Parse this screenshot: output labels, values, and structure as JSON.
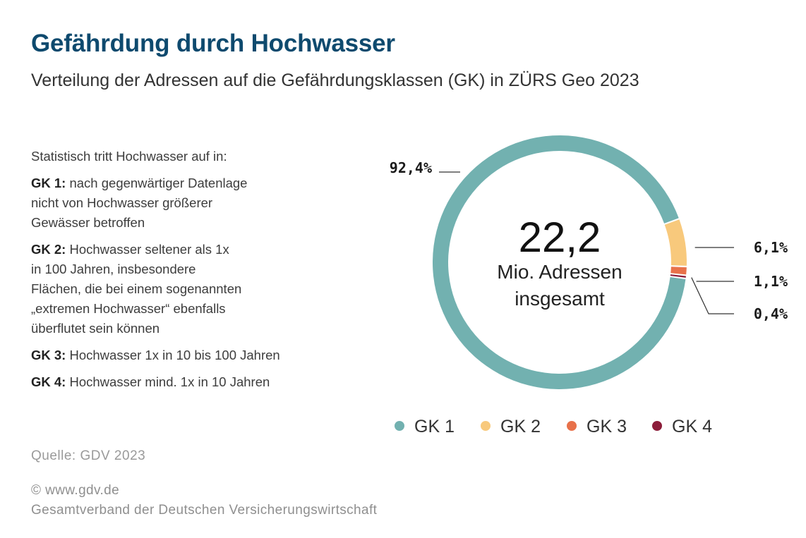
{
  "header": {
    "title": "Gefährdung durch Hochwasser",
    "subtitle": "Verteilung der Adressen auf die Gefährdungsklassen (GK) in ZÜRS Geo 2023"
  },
  "explanation": {
    "intro": "Statistisch tritt Hochwasser auf in:",
    "items": [
      {
        "key": "GK 1:",
        "lines": [
          "nach gegenwärtiger Datenlage",
          "nicht von Hochwasser größerer",
          "Gewässer betroffen"
        ]
      },
      {
        "key": "GK 2:",
        "lines": [
          "Hochwasser seltener als 1x",
          "in 100 Jahren, insbesondere",
          "Flächen, die bei einem sogenannten",
          "„extremen Hochwasser“ ebenfalls",
          "überflutet sein können"
        ]
      },
      {
        "key": "GK 3:",
        "lines": [
          "Hochwasser 1x in 10 bis 100 Jahren"
        ]
      },
      {
        "key": "GK 4:",
        "lines": [
          "Hochwasser mind. 1x in 10 Jahren"
        ]
      }
    ]
  },
  "chart_data": {
    "type": "pie",
    "categories": [
      "GK 1",
      "GK 2",
      "GK 3",
      "GK 4"
    ],
    "values": [
      92.4,
      6.1,
      1.1,
      0.4
    ],
    "value_labels": [
      "92,4%",
      "6,1%",
      "1,1%",
      "0,4%"
    ],
    "colors": [
      "#72b1b0",
      "#f8c97c",
      "#e8714a",
      "#8c1d3a"
    ],
    "center_value": "22,2",
    "center_lines": [
      "Mio. Adressen",
      "insgesamt"
    ],
    "legend_position": "bottom"
  },
  "footer": {
    "source": "Quelle: GDV  2023",
    "copyright": "© www.gdv.de",
    "organization": "Gesamtverband der Deutschen Versicherungswirtschaft"
  }
}
